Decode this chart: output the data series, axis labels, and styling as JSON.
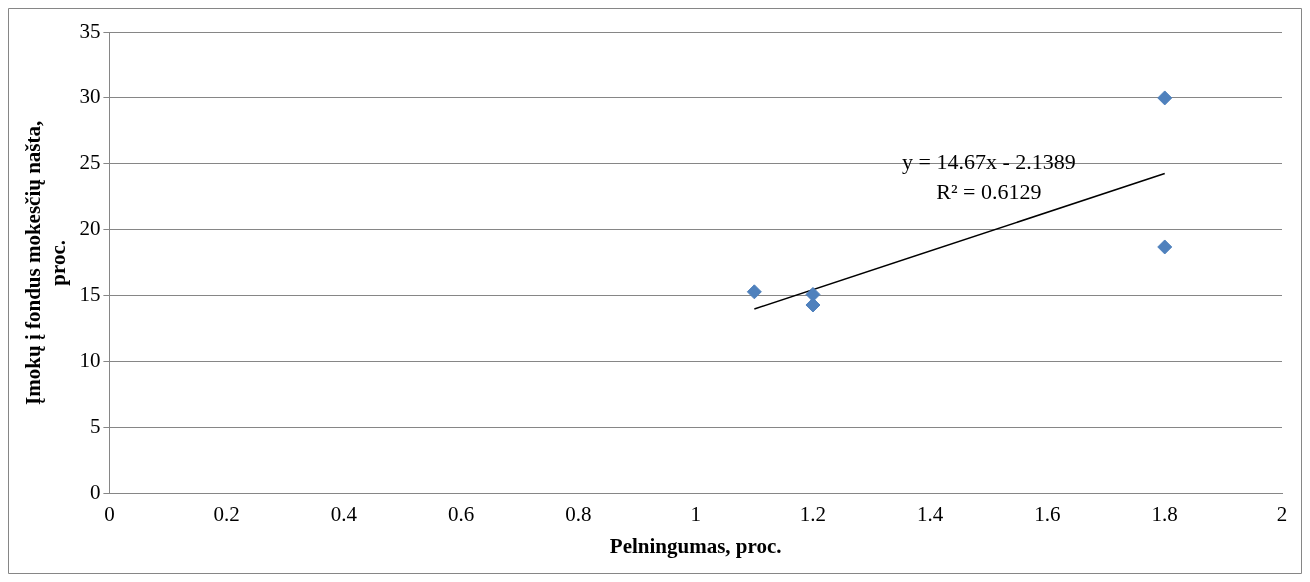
{
  "chart_data": {
    "type": "scatter",
    "xlabel": "Pelningumas, proc.",
    "ylabel": "Įmokų į fondus mokesčių našta, proc.",
    "series": [
      {
        "type": "scatter",
        "color": "#4f81bd",
        "x": [
          1.1,
          1.2,
          1.2,
          1.8,
          1.8
        ],
        "values": [
          15.3,
          15.1,
          14.3,
          30.0,
          18.7
        ],
        "marker": "diamond"
      },
      {
        "type": "line",
        "color": "#000000",
        "x": [
          1.1,
          1.8
        ],
        "values": [
          14.0,
          24.27
        ],
        "marker": "none"
      }
    ],
    "annotations": [
      "y = 14.67x - 2.1389",
      "R² = 0.6129"
    ],
    "xlim": [
      0,
      2
    ],
    "xticks": [
      0,
      0.2,
      0.4,
      0.6,
      0.8,
      1,
      1.2,
      1.4,
      1.6,
      1.8,
      2
    ],
    "ylim": [
      0,
      35
    ],
    "yticks": [
      0,
      5,
      10,
      15,
      20,
      25,
      30,
      35
    ],
    "grid": "y",
    "legend": false
  }
}
